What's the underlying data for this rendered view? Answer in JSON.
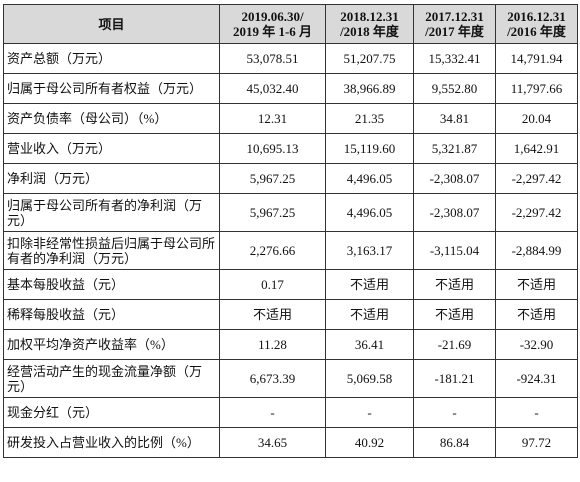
{
  "headers": [
    "项目",
    "2019.06.30/\n2019 年 1-6 月",
    "2018.12.31\n/2018 年度",
    "2017.12.31\n/2017 年度",
    "2016.12.31\n/2016 年度"
  ],
  "rows": [
    {
      "label": "资产总额（万元）",
      "values": [
        "53,078.51",
        "51,207.75",
        "15,332.41",
        "14,791.94"
      ]
    },
    {
      "label": "归属于母公司所有者权益（万元）",
      "values": [
        "45,032.40",
        "38,966.89",
        "9,552.80",
        "11,797.66"
      ]
    },
    {
      "label": "资产负债率（母公司）（%）",
      "values": [
        "12.31",
        "21.35",
        "34.81",
        "20.04"
      ]
    },
    {
      "label": "营业收入（万元）",
      "values": [
        "10,695.13",
        "15,119.60",
        "5,321.87",
        "1,642.91"
      ]
    },
    {
      "label": "净利润（万元）",
      "values": [
        "5,967.25",
        "4,496.05",
        "-2,308.07",
        "-2,297.42"
      ]
    },
    {
      "label": "归属于母公司所有者的净利润（万元）",
      "values": [
        "5,967.25",
        "4,496.05",
        "-2,308.07",
        "-2,297.42"
      ]
    },
    {
      "label": "扣除非经常性损益后归属于母公司所有者的净利润（万元）",
      "values": [
        "2,276.66",
        "3,163.17",
        "-3,115.04",
        "-2,884.99"
      ]
    },
    {
      "label": "基本每股收益（元）",
      "values": [
        "0.17",
        "不适用",
        "不适用",
        "不适用"
      ]
    },
    {
      "label": "稀释每股收益（元）",
      "values": [
        "不适用",
        "不适用",
        "不适用",
        "不适用"
      ]
    },
    {
      "label": "加权平均净资产收益率（%）",
      "values": [
        "11.28",
        "36.41",
        "-21.69",
        "-32.90"
      ]
    },
    {
      "label": "经营活动产生的现金流量净额（万元）",
      "values": [
        "6,673.39",
        "5,069.58",
        "-181.21",
        "-924.31"
      ]
    },
    {
      "label": "现金分红（元）",
      "values": [
        "-",
        "-",
        "-",
        "-"
      ]
    },
    {
      "label": "研发投入占营业收入的比例（%）",
      "values": [
        "34.65",
        "40.92",
        "86.84",
        "97.72"
      ]
    }
  ]
}
